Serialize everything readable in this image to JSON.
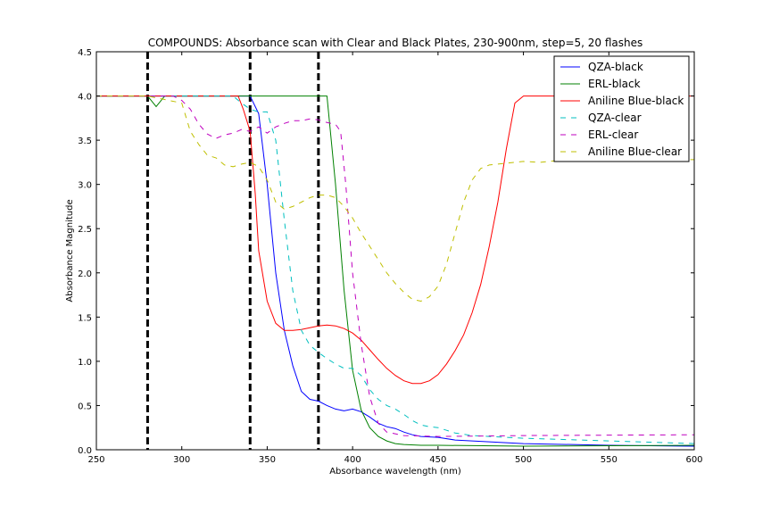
{
  "chart_data": {
    "type": "line",
    "title": "COMPOUNDS: Absorbance scan with Clear and Black Plates, 230-900nm, step=5, 20 flashes",
    "xlabel": "Absorbance wavelength (nm)",
    "ylabel": "Absorbance Magnitude",
    "xlim": [
      250,
      600
    ],
    "ylim": [
      0,
      4.5
    ],
    "xticks": [
      250,
      300,
      350,
      400,
      450,
      500,
      550,
      600
    ],
    "yticks": [
      0.0,
      0.5,
      1.0,
      1.5,
      2.0,
      2.5,
      3.0,
      3.5,
      4.0,
      4.5
    ],
    "xtick_labels": [
      "250",
      "300",
      "350",
      "400",
      "450",
      "500",
      "550",
      "600"
    ],
    "ytick_labels": [
      "0.0",
      "0.5",
      "1.0",
      "1.5",
      "2.0",
      "2.5",
      "3.0",
      "3.5",
      "4.0",
      "4.5"
    ],
    "grid": false,
    "legend_position": "top-right",
    "vertical_lines": [
      {
        "x": 280,
        "color": "#000000",
        "style": "dashed"
      },
      {
        "x": 340,
        "color": "#000000",
        "style": "dashed"
      },
      {
        "x": 380,
        "color": "#000000",
        "style": "dashed"
      }
    ],
    "series": [
      {
        "name": "QZA-black",
        "color": "#0000ff",
        "style": "solid",
        "x": [
          250,
          280,
          300,
          320,
          335,
          340,
          345,
          350,
          355,
          360,
          365,
          370,
          375,
          380,
          385,
          390,
          395,
          400,
          405,
          410,
          415,
          420,
          425,
          430,
          435,
          440,
          450,
          460,
          470,
          480,
          490,
          500,
          550,
          600
        ],
        "y": [
          4.0,
          4.0,
          4.0,
          4.0,
          4.0,
          4.0,
          3.8,
          3.0,
          2.0,
          1.35,
          0.95,
          0.66,
          0.57,
          0.55,
          0.5,
          0.46,
          0.44,
          0.46,
          0.43,
          0.37,
          0.3,
          0.26,
          0.24,
          0.2,
          0.17,
          0.15,
          0.14,
          0.11,
          0.1,
          0.09,
          0.08,
          0.07,
          0.05,
          0.04
        ]
      },
      {
        "name": "ERL-black",
        "color": "#008000",
        "style": "solid",
        "x": [
          250,
          280,
          285,
          290,
          295,
          300,
          350,
          380,
          385,
          390,
          395,
          400,
          405,
          410,
          415,
          420,
          425,
          430,
          440,
          450,
          500,
          600
        ],
        "y": [
          4.0,
          4.0,
          3.88,
          4.0,
          4.0,
          4.0,
          4.0,
          4.0,
          4.0,
          3.0,
          1.8,
          0.9,
          0.45,
          0.25,
          0.15,
          0.1,
          0.07,
          0.06,
          0.05,
          0.05,
          0.04,
          0.05
        ]
      },
      {
        "name": "Aniline Blue-black",
        "color": "#ff0000",
        "style": "solid",
        "x": [
          250,
          300,
          333,
          336,
          340,
          343,
          345,
          350,
          355,
          360,
          365,
          370,
          375,
          380,
          385,
          390,
          395,
          400,
          405,
          410,
          415,
          420,
          425,
          430,
          435,
          440,
          445,
          450,
          455,
          460,
          465,
          470,
          475,
          480,
          485,
          490,
          495,
          500,
          505,
          510,
          520,
          530,
          550,
          580,
          600
        ],
        "y": [
          4.0,
          4.0,
          4.0,
          3.85,
          3.6,
          2.9,
          2.25,
          1.68,
          1.43,
          1.35,
          1.35,
          1.36,
          1.38,
          1.4,
          1.41,
          1.4,
          1.37,
          1.32,
          1.24,
          1.13,
          1.02,
          0.92,
          0.84,
          0.78,
          0.75,
          0.75,
          0.78,
          0.85,
          0.97,
          1.12,
          1.3,
          1.55,
          1.87,
          2.3,
          2.8,
          3.4,
          3.92,
          4.0,
          4.0,
          4.0,
          4.0,
          4.0,
          4.0,
          4.0,
          4.0
        ]
      },
      {
        "name": "QZA-clear",
        "color": "#00bfbf",
        "style": "dashed",
        "x": [
          250,
          280,
          300,
          320,
          330,
          335,
          340,
          345,
          350,
          355,
          360,
          365,
          370,
          375,
          380,
          385,
          390,
          395,
          400,
          405,
          410,
          415,
          420,
          425,
          430,
          435,
          440,
          445,
          450,
          455,
          460,
          470,
          480,
          500,
          550,
          600
        ],
        "y": [
          4.0,
          4.0,
          4.0,
          4.0,
          4.0,
          3.92,
          3.85,
          3.82,
          3.82,
          3.5,
          2.6,
          1.8,
          1.35,
          1.18,
          1.1,
          1.03,
          0.97,
          0.92,
          0.92,
          0.84,
          0.68,
          0.57,
          0.5,
          0.46,
          0.4,
          0.33,
          0.28,
          0.26,
          0.25,
          0.22,
          0.19,
          0.16,
          0.15,
          0.13,
          0.1,
          0.07
        ]
      },
      {
        "name": "ERL-clear",
        "color": "#bf00bf",
        "style": "dashed",
        "x": [
          250,
          280,
          295,
          300,
          305,
          310,
          315,
          320,
          325,
          330,
          335,
          340,
          345,
          350,
          355,
          360,
          365,
          370,
          375,
          380,
          385,
          390,
          393,
          396,
          400,
          405,
          410,
          415,
          420,
          430,
          450,
          500,
          600
        ],
        "y": [
          4.0,
          4.0,
          4.0,
          3.95,
          3.85,
          3.68,
          3.57,
          3.52,
          3.56,
          3.58,
          3.62,
          3.6,
          3.65,
          3.58,
          3.65,
          3.69,
          3.72,
          3.72,
          3.74,
          3.73,
          3.7,
          3.68,
          3.6,
          3.0,
          2.0,
          1.2,
          0.6,
          0.3,
          0.2,
          0.16,
          0.15,
          0.16,
          0.17
        ]
      },
      {
        "name": "Aniline Blue-clear",
        "color": "#bfbf00",
        "style": "dashed",
        "x": [
          250,
          280,
          300,
          305,
          310,
          315,
          320,
          325,
          330,
          335,
          340,
          345,
          350,
          355,
          360,
          365,
          370,
          375,
          380,
          385,
          390,
          395,
          400,
          405,
          410,
          415,
          420,
          425,
          430,
          435,
          440,
          445,
          450,
          455,
          460,
          465,
          470,
          475,
          480,
          490,
          500,
          510,
          520,
          550,
          570,
          580,
          600
        ],
        "y": [
          4.0,
          4.0,
          3.92,
          3.6,
          3.45,
          3.33,
          3.3,
          3.22,
          3.2,
          3.23,
          3.25,
          3.2,
          3.05,
          2.8,
          2.72,
          2.75,
          2.8,
          2.85,
          2.88,
          2.88,
          2.85,
          2.75,
          2.62,
          2.45,
          2.3,
          2.15,
          2.0,
          1.88,
          1.78,
          1.7,
          1.68,
          1.73,
          1.85,
          2.1,
          2.45,
          2.8,
          3.05,
          3.18,
          3.22,
          3.24,
          3.26,
          3.25,
          3.27,
          3.28,
          3.28,
          3.28,
          3.28
        ]
      }
    ]
  }
}
